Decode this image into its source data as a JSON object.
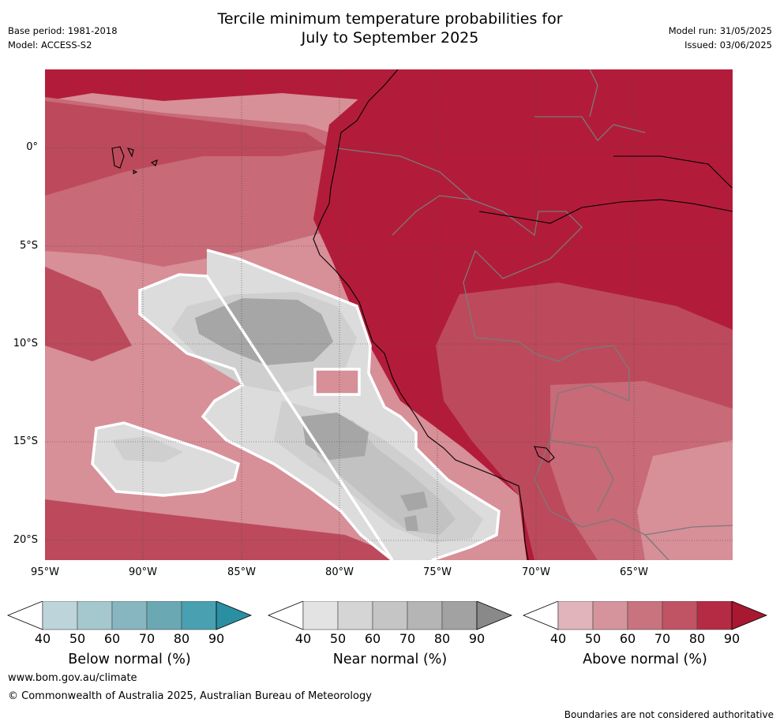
{
  "header": {
    "title_line1": "Tercile minimum temperature probabilities for",
    "title_line2": "July to September 2025",
    "base_period": "Base period: 1981-2018",
    "model": "Model: ACCESS-S2",
    "model_run": "Model run: 31/05/2025",
    "issued": "Issued: 03/06/2025"
  },
  "map": {
    "lat_labels": [
      "0°",
      "5°S",
      "10°S",
      "15°S",
      "20°S"
    ],
    "lon_labels": [
      "95°W",
      "90°W",
      "85°W",
      "80°W",
      "75°W",
      "70°W",
      "65°W"
    ],
    "colors": {
      "ocean_base": "#d78f98",
      "land": "#b21c3a",
      "above_70": "#c86a78",
      "above_80": "#bc4a5c",
      "near_40": "#dcdcdc",
      "near_50": "#cfcfcf",
      "near_60": "#c2c2c2",
      "near_70": "#a6a6a6",
      "coast": "#000000",
      "border": "#7a7a7a",
      "grid": "#444444",
      "contour": "#ffffff"
    }
  },
  "colorbars": [
    {
      "name": "below",
      "title": "Below normal (%)",
      "ticks": [
        "40",
        "50",
        "60",
        "70",
        "80",
        "90"
      ],
      "colors": [
        "#ffffff",
        "#bdd5da",
        "#a5c7ce",
        "#88b6c0",
        "#6aa8b4",
        "#49a0b0",
        "#2b8fa3"
      ]
    },
    {
      "name": "near",
      "title": "Near normal (%)",
      "ticks": [
        "40",
        "50",
        "60",
        "70",
        "80",
        "90"
      ],
      "colors": [
        "#ffffff",
        "#e3e3e3",
        "#d5d5d5",
        "#c5c5c5",
        "#b5b5b5",
        "#a2a2a2",
        "#898989"
      ]
    },
    {
      "name": "above",
      "title": "Above normal (%)",
      "ticks": [
        "40",
        "50",
        "60",
        "70",
        "80",
        "90"
      ],
      "colors": [
        "#ffffff",
        "#e0b4ba",
        "#d5949c",
        "#c9737f",
        "#c05464",
        "#b52b44",
        "#a81830"
      ]
    }
  ],
  "footer": {
    "url": "www.bom.gov.au/climate",
    "copyright": "© Commonwealth of Australia 2025, Australian Bureau of Meteorology",
    "disclaimer": "Boundaries are not considered authoritative"
  }
}
